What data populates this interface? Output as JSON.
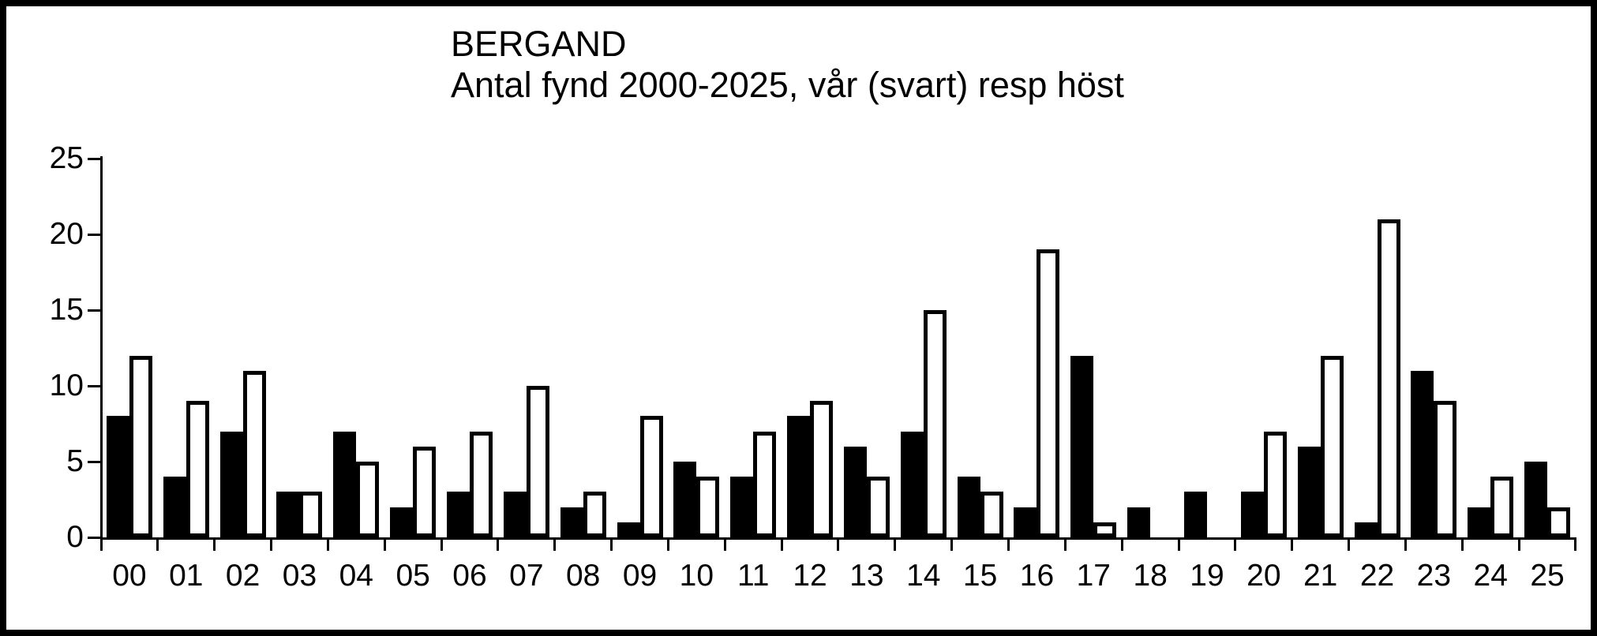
{
  "title": "BERGAND",
  "subtitle": "Antal fynd 2000-2025, vår (svart) resp höst",
  "chart_data": {
    "type": "bar",
    "title": "BERGAND",
    "subtitle": "Antal fynd 2000-2025, vår (svart) resp höst",
    "categories": [
      "00",
      "01",
      "02",
      "03",
      "04",
      "05",
      "06",
      "07",
      "08",
      "09",
      "10",
      "11",
      "12",
      "13",
      "14",
      "15",
      "16",
      "17",
      "18",
      "19",
      "20",
      "21",
      "22",
      "23",
      "24",
      "25"
    ],
    "series": [
      {
        "name": "vår (svart)",
        "color": "#000000",
        "values": [
          8,
          4,
          7,
          3,
          7,
          2,
          3,
          3,
          2,
          1,
          5,
          4,
          8,
          6,
          7,
          4,
          2,
          12,
          2,
          3,
          3,
          6,
          1,
          11,
          2,
          5
        ]
      },
      {
        "name": "höst",
        "color": "#ffffff",
        "values": [
          12,
          9,
          11,
          3,
          5,
          6,
          7,
          10,
          3,
          8,
          4,
          7,
          9,
          4,
          15,
          3,
          19,
          1,
          0,
          0,
          7,
          12,
          21,
          9,
          4,
          2
        ]
      }
    ],
    "xlabel": "",
    "ylabel": "",
    "ylim": [
      0,
      25
    ],
    "yticks": [
      0,
      5,
      10,
      15,
      20,
      25
    ],
    "grid": false,
    "legend_position": "none",
    "axis_color": "#000000",
    "background_color": "#ffffff"
  }
}
